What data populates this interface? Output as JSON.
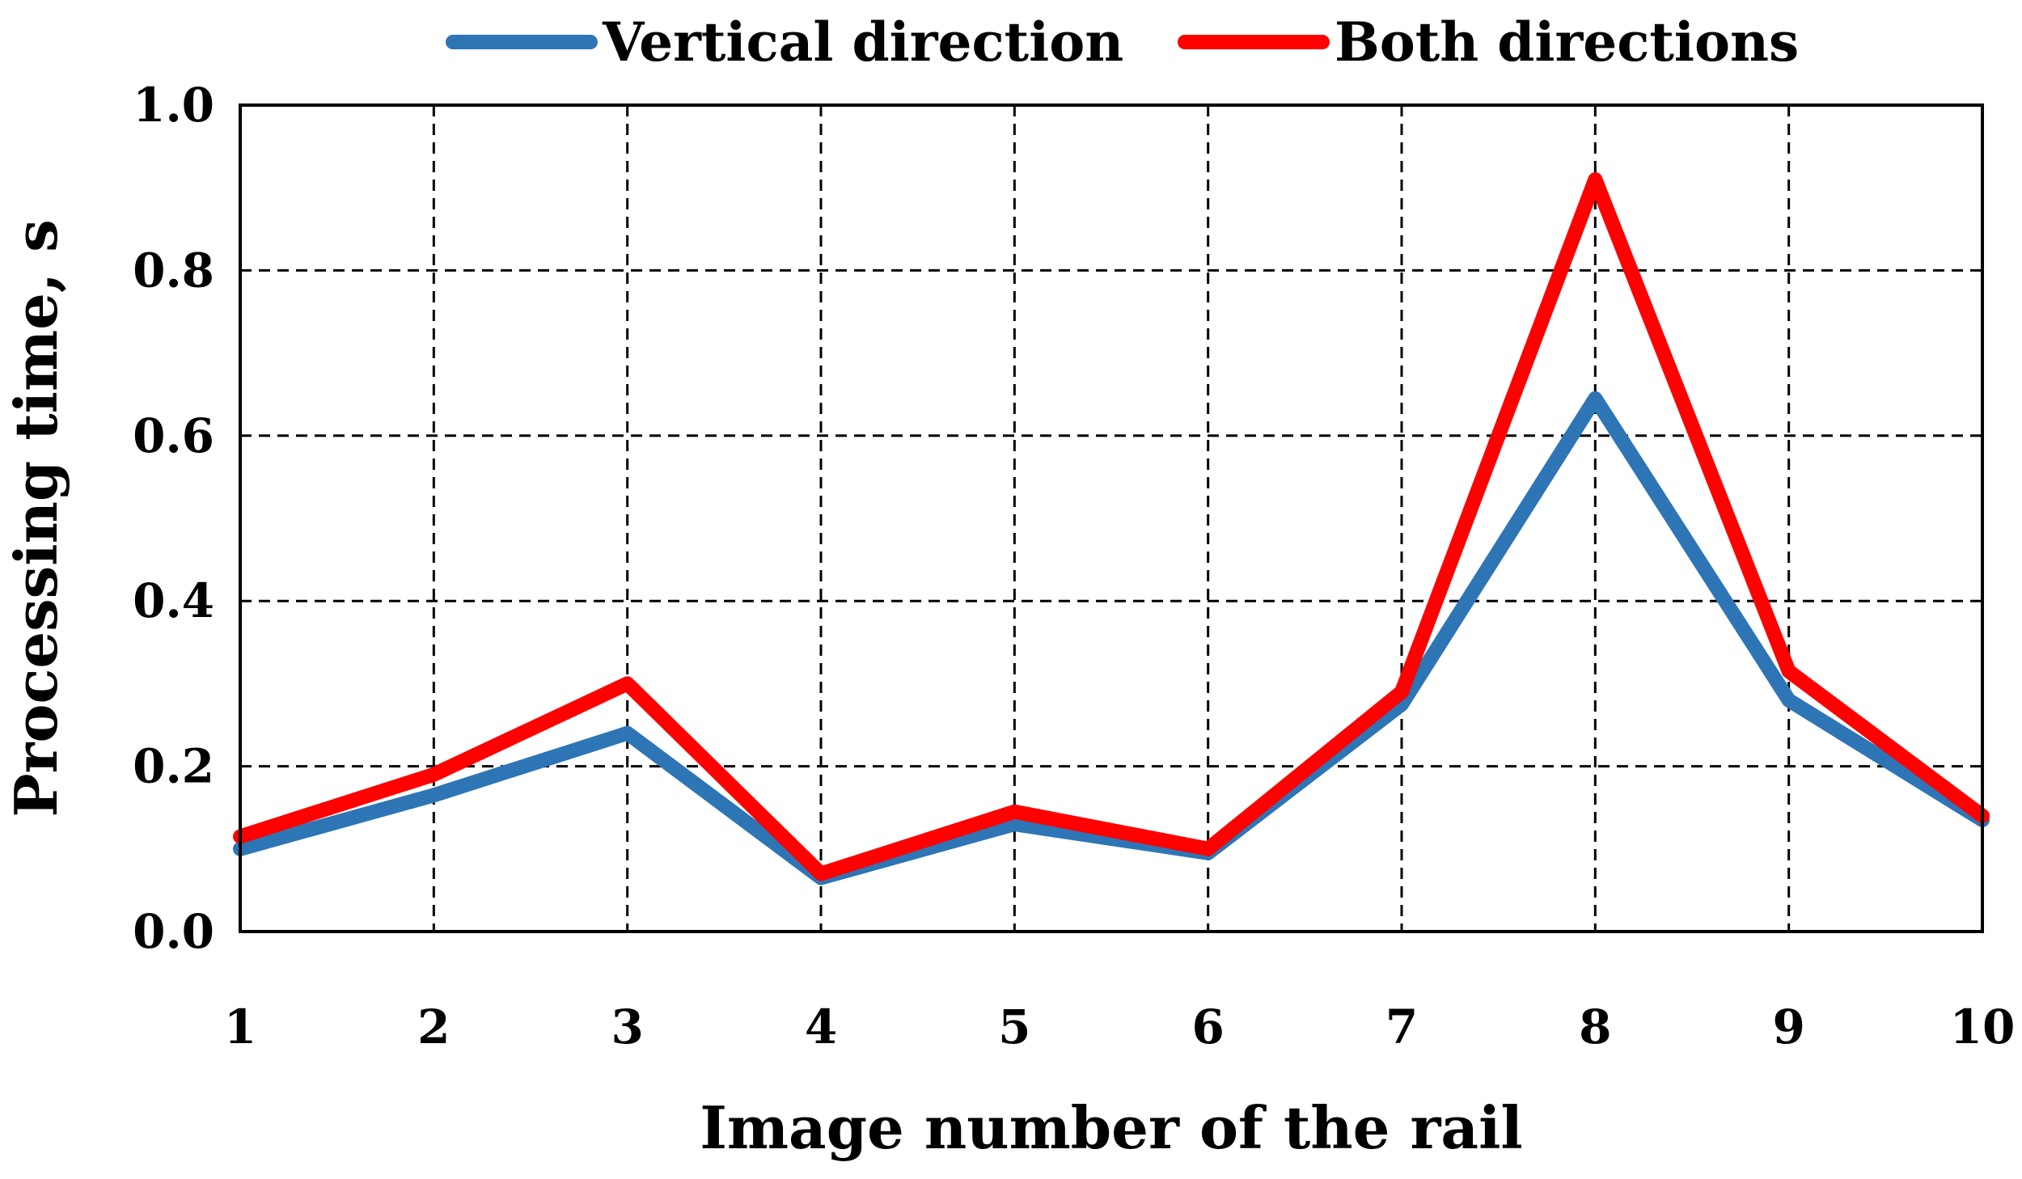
{
  "chart_data": {
    "type": "line",
    "title": "",
    "xlabel": "Image number of the rail",
    "ylabel": "Processing time, s",
    "x": [
      1,
      2,
      3,
      4,
      5,
      6,
      7,
      8,
      9,
      10
    ],
    "x_tick_labels": [
      "1",
      "2",
      "3",
      "4",
      "5",
      "6",
      "7",
      "8",
      "9",
      "10"
    ],
    "y_tick_labels": [
      "0.0",
      "0.2",
      "0.4",
      "0.6",
      "0.8",
      "1.0"
    ],
    "ylim": [
      0,
      1.0
    ],
    "grid": true,
    "grid_style": "dashed",
    "legend_position": "top",
    "series": [
      {
        "name": "Vertical direction",
        "color": "#2E75B6",
        "values": [
          0.1,
          0.165,
          0.24,
          0.065,
          0.13,
          0.095,
          0.275,
          0.645,
          0.28,
          0.135
        ]
      },
      {
        "name": "Both directions",
        "color": "#FF0000",
        "values": [
          0.115,
          0.19,
          0.3,
          0.07,
          0.145,
          0.1,
          0.29,
          0.91,
          0.315,
          0.14
        ]
      }
    ]
  }
}
